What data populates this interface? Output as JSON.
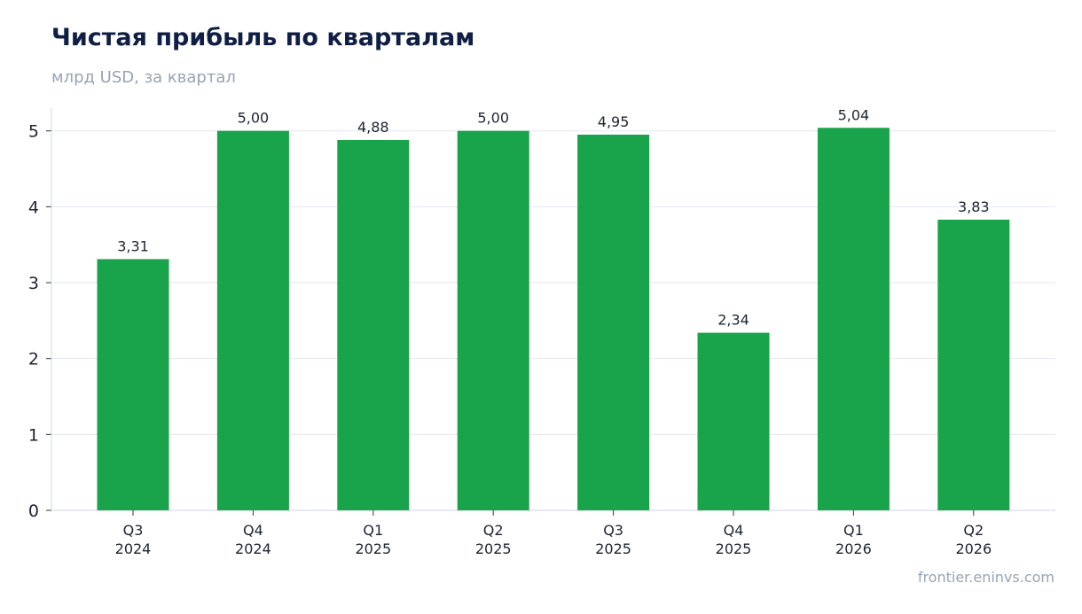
{
  "title": "Чистая прибыль по кварталам",
  "subtitle": "млрд USD, за квартал",
  "source": "frontier.eninvs.com",
  "colors": {
    "bar": "#19a34a",
    "grid": "#e3e7ee",
    "axis": "#cfd5de"
  },
  "chart_data": {
    "type": "bar",
    "categories": [
      [
        "Q3",
        "2024"
      ],
      [
        "Q4",
        "2024"
      ],
      [
        "Q1",
        "2025"
      ],
      [
        "Q2",
        "2025"
      ],
      [
        "Q3",
        "2025"
      ],
      [
        "Q4",
        "2025"
      ],
      [
        "Q1",
        "2026"
      ],
      [
        "Q2",
        "2026"
      ]
    ],
    "values": [
      3.31,
      5.0,
      4.88,
      5.0,
      4.95,
      2.34,
      5.04,
      3.83
    ],
    "value_labels": [
      "3,31",
      "5,00",
      "4,88",
      "5,00",
      "4,95",
      "2,34",
      "5,04",
      "3,83"
    ],
    "yticks": [
      0,
      1,
      2,
      3,
      4,
      5
    ],
    "ylim": [
      0,
      5.3
    ],
    "grid": true,
    "xlabel": "",
    "ylabel": ""
  }
}
